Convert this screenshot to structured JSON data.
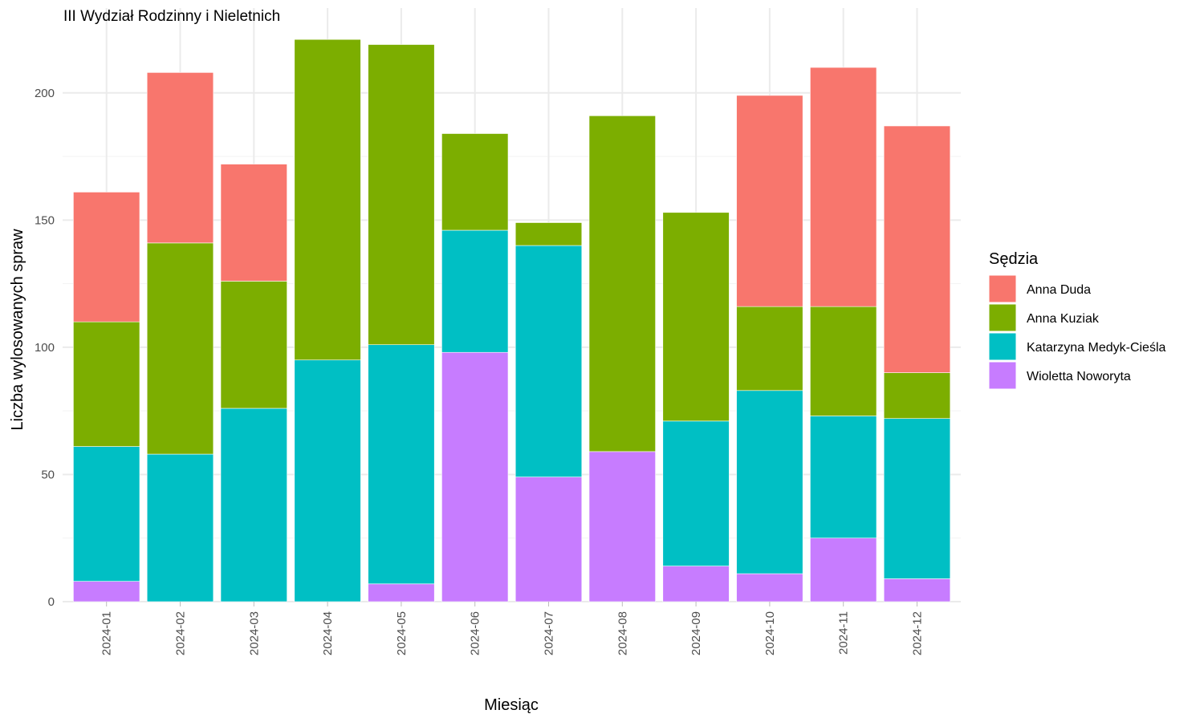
{
  "chart_data": {
    "type": "bar",
    "stacked": true,
    "title": "III Wydział Rodzinny i Nieletnich",
    "xlabel": "Miesiąc",
    "ylabel": "Liczba wylosowanych spraw",
    "ylim": [
      0,
      222
    ],
    "yticks": [
      0,
      50,
      100,
      150,
      200
    ],
    "grid": true,
    "legend": {
      "title": "Sędzia",
      "position": "right"
    },
    "categories": [
      "2024-01",
      "2024-02",
      "2024-03",
      "2024-04",
      "2024-05",
      "2024-06",
      "2024-07",
      "2024-08",
      "2024-09",
      "2024-10",
      "2024-11",
      "2024-12"
    ],
    "series": [
      {
        "name": "Anna Duda",
        "color": "#F8766D",
        "values": [
          51,
          67,
          46,
          0,
          0,
          0,
          0,
          0,
          0,
          83,
          94,
          97
        ]
      },
      {
        "name": "Anna Kuziak",
        "color": "#7CAE00",
        "values": [
          49,
          83,
          50,
          126,
          118,
          38,
          9,
          132,
          82,
          33,
          43,
          18
        ]
      },
      {
        "name": "Katarzyna Medyk-Cieśla",
        "color": "#00BFC4",
        "values": [
          53,
          58,
          76,
          95,
          94,
          48,
          91,
          0,
          57,
          72,
          48,
          63
        ]
      },
      {
        "name": "Wioletta Noworyta",
        "color": "#C77CFF",
        "values": [
          8,
          0,
          0,
          0,
          7,
          98,
          49,
          59,
          14,
          11,
          25,
          9
        ]
      }
    ]
  }
}
